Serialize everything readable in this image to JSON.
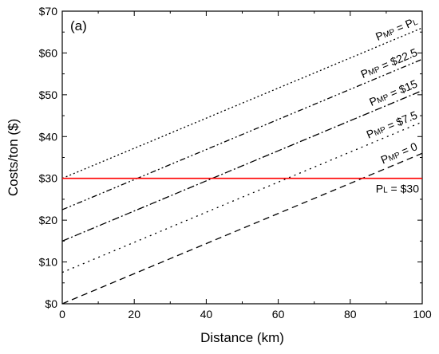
{
  "chart_data": {
    "type": "line",
    "panel_label": "(a)",
    "xlabel": "Distance (km)",
    "ylabel": "Costs/ton ($)",
    "xlim": [
      0,
      100
    ],
    "ylim": [
      0,
      70
    ],
    "x_ticks": [
      "0",
      "20",
      "40",
      "60",
      "80",
      "100"
    ],
    "y_ticks": [
      "$0",
      "$10",
      "$20",
      "$30",
      "$40",
      "$50",
      "$60",
      "$70"
    ],
    "grid": false,
    "series": [
      {
        "label": {
          "main": "P",
          "sub": "MP",
          "rest": " = P",
          "sub2": "L"
        },
        "x": [
          0,
          100
        ],
        "y": [
          30,
          66
        ],
        "style": "dotted-dense",
        "color": "#000000"
      },
      {
        "label": {
          "main": "P",
          "sub": "MP",
          "rest": " = $22.5"
        },
        "x": [
          0,
          100
        ],
        "y": [
          22.5,
          58.5
        ],
        "style": "dash-dot-dot",
        "color": "#000000"
      },
      {
        "label": {
          "main": "P",
          "sub": "MP",
          "rest": " = $15"
        },
        "x": [
          0,
          100
        ],
        "y": [
          15,
          51
        ],
        "style": "dash-dot",
        "color": "#000000"
      },
      {
        "label": {
          "main": "P",
          "sub": "MP",
          "rest": " = $7.5"
        },
        "x": [
          0,
          100
        ],
        "y": [
          7.5,
          43.5
        ],
        "style": "dotted",
        "color": "#000000"
      },
      {
        "label": {
          "main": "P",
          "sub": "MP",
          "rest": " = 0"
        },
        "x": [
          0,
          100
        ],
        "y": [
          0,
          36
        ],
        "style": "dashed",
        "color": "#000000"
      }
    ],
    "reference_line": {
      "label": {
        "main": "P",
        "sub": "L",
        "rest": " = $30"
      },
      "y": 30,
      "color": "#ff0000"
    }
  }
}
